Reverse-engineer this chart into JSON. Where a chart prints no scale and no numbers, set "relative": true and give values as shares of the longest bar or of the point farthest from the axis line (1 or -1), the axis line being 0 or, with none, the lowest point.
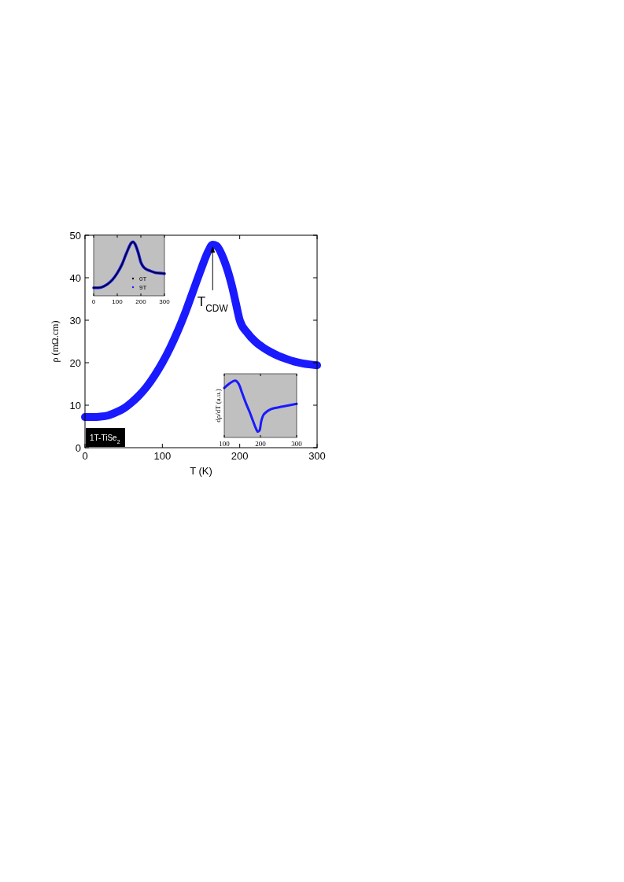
{
  "chart_data": [
    {
      "type": "line",
      "xlabel": "T (K)",
      "ylabel": "ρ (mΩ.cm)",
      "xlim": [
        0,
        300
      ],
      "ylim": [
        0,
        50
      ],
      "xticks": [
        0,
        100,
        200,
        300
      ],
      "yticks": [
        0,
        10,
        20,
        30,
        40,
        50
      ],
      "series": [
        {
          "color": "#1a1aff",
          "x": [
            0,
            10,
            20,
            30,
            40,
            50,
            60,
            70,
            80,
            90,
            100,
            110,
            120,
            130,
            140,
            150,
            160,
            165,
            170,
            180,
            190,
            195,
            200,
            210,
            220,
            230,
            240,
            250,
            260,
            270,
            280,
            290,
            300
          ],
          "values": [
            7.2,
            7.2,
            7.3,
            7.6,
            8.3,
            9.2,
            10.6,
            12.3,
            14.4,
            17,
            20,
            23.5,
            27.5,
            32,
            37,
            42,
            46.5,
            47.8,
            47.5,
            44,
            38,
            34,
            30,
            27,
            25,
            23.6,
            22.5,
            21.6,
            20.9,
            20.3,
            19.9,
            19.6,
            19.4
          ]
        }
      ],
      "annotations": [
        {
          "text": "T$_{CDW}$",
          "x": 165,
          "y": 47.8
        },
        "1T-TiSe$_{2}$"
      ]
    },
    {
      "type": "line",
      "relative": true,
      "xlim": [
        0,
        300
      ],
      "xticks": [
        0,
        100,
        200,
        300
      ],
      "legend": "bottom",
      "series": [
        {
          "name": "0T",
          "color": "#000000",
          "x": [
            0,
            20,
            40,
            60,
            80,
            100,
            120,
            140,
            160,
            167,
            175,
            190,
            200,
            210,
            220,
            240,
            260,
            280,
            300
          ],
          "values": [
            0.15,
            0.15,
            0.17,
            0.22,
            0.3,
            0.42,
            0.58,
            0.8,
            0.98,
            1,
            0.96,
            0.78,
            0.62,
            0.54,
            0.5,
            0.46,
            0.43,
            0.42,
            0.41
          ]
        },
        {
          "name": "9T",
          "color": "#1a1aff",
          "x": [
            0,
            20,
            40,
            60,
            80,
            100,
            120,
            140,
            160,
            167,
            175,
            190,
            200,
            210,
            220,
            240,
            260,
            280,
            300
          ],
          "values": [
            0.15,
            0.15,
            0.17,
            0.22,
            0.3,
            0.42,
            0.58,
            0.8,
            0.98,
            1,
            0.96,
            0.78,
            0.62,
            0.54,
            0.5,
            0.46,
            0.43,
            0.42,
            0.41
          ]
        }
      ]
    },
    {
      "type": "line",
      "relative": true,
      "xlim": [
        100,
        300
      ],
      "xticks": [
        100,
        200,
        300
      ],
      "ylabel": "dρ/dT (a.u.)",
      "series": [
        {
          "color": "#1a1aff",
          "x": [
            100,
            115,
            130,
            140,
            150,
            160,
            170,
            180,
            188,
            193,
            198,
            202,
            207,
            215,
            230,
            250,
            275,
            300
          ],
          "values": [
            0.87,
            0.95,
            1,
            0.94,
            0.77,
            0.6,
            0.45,
            0.28,
            0.15,
            0.1,
            0.13,
            0.28,
            0.38,
            0.44,
            0.5,
            0.53,
            0.56,
            0.59
          ]
        }
      ]
    }
  ]
}
